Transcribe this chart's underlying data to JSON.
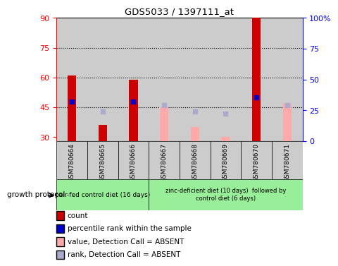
{
  "title": "GDS5033 / 1397111_at",
  "samples": [
    "GSM780664",
    "GSM780665",
    "GSM780666",
    "GSM780667",
    "GSM780668",
    "GSM780669",
    "GSM780670",
    "GSM780671"
  ],
  "count_values": [
    61,
    36,
    59,
    null,
    null,
    null,
    90,
    null
  ],
  "count_absent_values": [
    null,
    null,
    null,
    45,
    35,
    30,
    null,
    47
  ],
  "rank_present": [
    48,
    null,
    48,
    null,
    null,
    null,
    50,
    null
  ],
  "rank_absent": [
    null,
    43,
    null,
    46,
    43,
    42,
    null,
    46
  ],
  "ylim_left": [
    28,
    90
  ],
  "ylim_right": [
    0,
    100
  ],
  "yticks_left": [
    30,
    45,
    60,
    75,
    90
  ],
  "yticks_right": [
    0,
    25,
    50,
    75,
    100
  ],
  "ybase": 28,
  "hlines": [
    45,
    60,
    75
  ],
  "group1_count": 3,
  "group2_count": 5,
  "group1_label": "pair-fed control diet (16 days)",
  "group2_label": "zinc-deficient diet (10 days)  followed by\ncontrol diet (6 days)",
  "protocol_label": "growth protocol",
  "bar_color_present": "#cc0000",
  "bar_color_absent": "#ffaaaa",
  "rank_color_present": "#0000cc",
  "rank_color_absent": "#aaaacc",
  "group_bg_color": "#99ee99",
  "sample_bg_color": "#cccccc",
  "plot_bg_color": "#ffffff",
  "legend_items": [
    {
      "color": "#cc0000",
      "label": "count"
    },
    {
      "color": "#0000cc",
      "label": "percentile rank within the sample"
    },
    {
      "color": "#ffaaaa",
      "label": "value, Detection Call = ABSENT"
    },
    {
      "color": "#aaaacc",
      "label": "rank, Detection Call = ABSENT"
    }
  ]
}
